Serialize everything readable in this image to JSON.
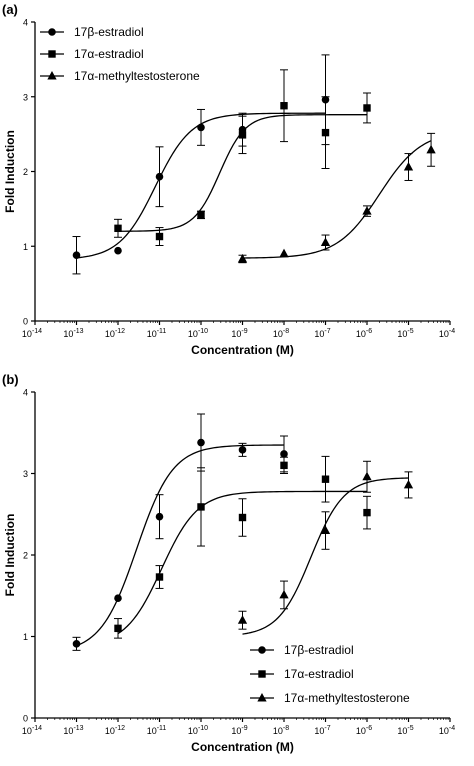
{
  "chart_data": [
    {
      "panel_label": "(a)",
      "type": "scatter",
      "xscale": "log",
      "xlabel": "Concentration (M)",
      "ylabel": "Fold Induction",
      "xlim": [
        1e-14,
        0.0001
      ],
      "ylim": [
        0,
        4
      ],
      "x_tick_labels": [
        "10",
        "10",
        "10",
        "10",
        "10",
        "10",
        "10",
        "10",
        "10",
        "10",
        "10"
      ],
      "x_tick_exponents": [
        "-14",
        "-13",
        "-12",
        "-11",
        "-10",
        "-9",
        "-8",
        "-7",
        "-6",
        "-5",
        "-4"
      ],
      "y_ticks": [
        "0",
        "1",
        "2",
        "3",
        "4"
      ],
      "legend_position": "top-left",
      "series": [
        {
          "name": "17β-estradiol",
          "marker": "circle",
          "x": [
            1e-13,
            1e-12,
            1e-11,
            1e-10,
            1e-09,
            1e-07
          ],
          "y": [
            0.88,
            0.94,
            1.93,
            2.59,
            2.56,
            2.96
          ],
          "err": [
            0.25,
            0.0,
            0.4,
            0.24,
            0.22,
            0.6
          ],
          "fit": {
            "bottom": 0.82,
            "top": 2.78,
            "logEC50": -11.1,
            "hill": 1.0
          }
        },
        {
          "name": "17α-estradiol",
          "marker": "square",
          "x": [
            1e-12,
            1e-11,
            1e-10,
            1e-09,
            1e-08,
            1e-07,
            1e-06
          ],
          "y": [
            1.24,
            1.13,
            1.42,
            2.49,
            2.88,
            2.52,
            2.85
          ],
          "err": [
            0.12,
            0.12,
            0.05,
            0.25,
            0.48,
            0.48,
            0.2
          ],
          "fit": {
            "bottom": 1.2,
            "top": 2.76,
            "logEC50": -9.55,
            "hill": 1.4
          }
        },
        {
          "name": "17α-methyltestosterone",
          "marker": "triangle",
          "x": [
            1e-09,
            1e-08,
            1e-07,
            1e-06,
            1e-05,
            3.5e-05
          ],
          "y": [
            0.83,
            0.9,
            1.05,
            1.47,
            2.06,
            2.29
          ],
          "err": [
            0.05,
            0.0,
            0.1,
            0.07,
            0.18,
            0.22
          ],
          "fit": {
            "bottom": 0.84,
            "top": 2.55,
            "logEC50": -5.7,
            "hill": 0.85
          }
        }
      ]
    },
    {
      "panel_label": "(b)",
      "type": "scatter",
      "xscale": "log",
      "xlabel": "Concentration (M)",
      "ylabel": "Fold Induction",
      "xlim": [
        1e-14,
        0.0001
      ],
      "ylim": [
        0,
        4
      ],
      "x_tick_labels": [
        "10",
        "10",
        "10",
        "10",
        "10",
        "10",
        "10",
        "10",
        "10",
        "10",
        "10"
      ],
      "x_tick_exponents": [
        "-14",
        "-13",
        "-12",
        "-11",
        "-10",
        "-9",
        "-8",
        "-7",
        "-6",
        "-5",
        "-4"
      ],
      "y_ticks": [
        "0",
        "1",
        "2",
        "3",
        "4"
      ],
      "legend_position": "bottom-right",
      "series": [
        {
          "name": "17β-estradiol",
          "marker": "circle",
          "x": [
            1e-13,
            1e-12,
            1e-11,
            1e-10,
            1e-09,
            1e-08
          ],
          "y": [
            0.91,
            1.47,
            2.47,
            3.38,
            3.29,
            3.24
          ],
          "err": [
            0.08,
            0.0,
            0.27,
            0.35,
            0.08,
            0.22
          ],
          "fit": {
            "bottom": 0.8,
            "top": 3.35,
            "logEC50": -11.55,
            "hill": 1.0
          }
        },
        {
          "name": "17α-estradiol",
          "marker": "square",
          "x": [
            1e-12,
            1e-11,
            1e-10,
            1e-09,
            1e-08,
            1e-07,
            1e-06
          ],
          "y": [
            1.1,
            1.73,
            2.59,
            2.46,
            3.1,
            2.93,
            2.52
          ],
          "err": [
            0.12,
            0.14,
            0.48,
            0.23,
            0.1,
            0.28,
            0.2
          ],
          "fit": {
            "bottom": 0.88,
            "top": 2.78,
            "logEC50": -10.95,
            "hill": 1.0
          }
        },
        {
          "name": "17α-methyltestosterone",
          "marker": "triangle",
          "x": [
            1e-09,
            1e-08,
            1e-07,
            1e-06,
            1e-05
          ],
          "y": [
            1.2,
            1.51,
            2.3,
            2.96,
            2.86
          ],
          "err": [
            0.11,
            0.17,
            0.23,
            0.19,
            0.16
          ],
          "fit": {
            "bottom": 1.0,
            "top": 2.95,
            "logEC50": -7.35,
            "hill": 1.1
          }
        }
      ]
    }
  ]
}
